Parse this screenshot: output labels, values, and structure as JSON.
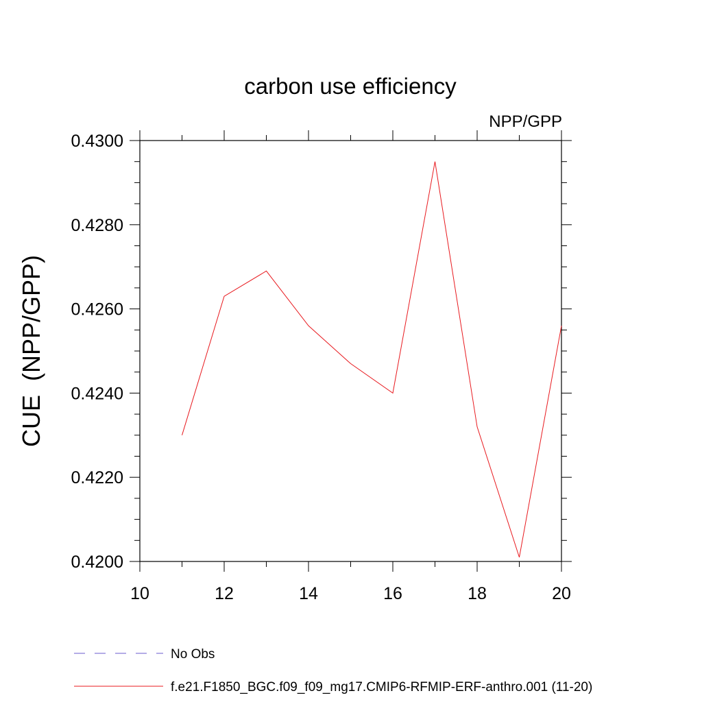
{
  "chart_data": {
    "type": "line",
    "title": "carbon use efficiency",
    "subtitle": "NPP/GPP",
    "ylabel": "CUE  (NPP/GPP)",
    "xlabel": "",
    "xlim": [
      10,
      20
    ],
    "ylim": [
      0.42,
      0.43
    ],
    "x_ticks": [
      10,
      12,
      14,
      16,
      18,
      20
    ],
    "x_tick_labels": [
      "10",
      "12",
      "14",
      "16",
      "18",
      "20"
    ],
    "y_ticks": [
      0.42,
      0.422,
      0.424,
      0.426,
      0.428,
      0.43
    ],
    "y_tick_labels": [
      "0.4200",
      "0.4220",
      "0.4240",
      "0.4260",
      "0.4280",
      "0.4300"
    ],
    "grid": false,
    "legend_position": "bottom",
    "series": [
      {
        "name": "f.e21.F1850_BGC.f09_f09_mg17.CMIP6-RFMIP-ERF-anthro.001 (11-20)",
        "color": "#e8191e",
        "dash": "solid",
        "x": [
          11,
          12,
          13,
          14,
          15,
          16,
          17,
          18,
          19,
          20
        ],
        "values": [
          0.423,
          0.4263,
          0.4269,
          0.4256,
          0.4247,
          0.424,
          0.4295,
          0.4232,
          0.4201,
          0.4256
        ]
      }
    ],
    "legend": [
      {
        "label": "No Obs",
        "color": "#6a5acd",
        "dash": "dashed"
      },
      {
        "label": "f.e21.F1850_BGC.f09_f09_mg17.CMIP6-RFMIP-ERF-anthro.001 (11-20)",
        "color": "#e8191e",
        "dash": "solid"
      }
    ]
  }
}
